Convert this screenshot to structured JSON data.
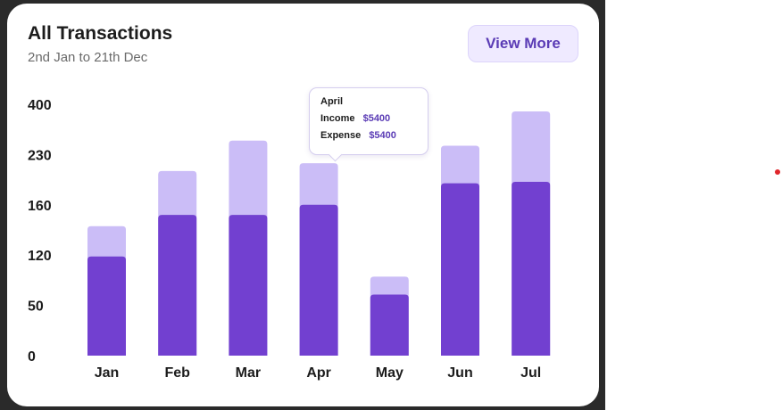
{
  "card": {
    "title": "All Transactions",
    "subtitle": "2nd Jan to 21th Dec",
    "view_more_label": "View More"
  },
  "colors": {
    "income": "#7240d0",
    "expense": "#cbbdf7",
    "accent": "#5a3bb5",
    "button_bg": "#efeaff"
  },
  "tooltip": {
    "month": "April",
    "income_label": "Income",
    "income_value": "$5400",
    "expense_label": "Expense",
    "expense_value": "$5400"
  },
  "chart_data": {
    "type": "bar",
    "stacked": true,
    "categories": [
      "Jan",
      "Feb",
      "Mar",
      "Apr",
      "May",
      "Jun",
      "Jul"
    ],
    "y_ticks": [
      "0",
      "50",
      "120",
      "160",
      "230",
      "400"
    ],
    "tick_values": [
      0,
      50,
      120,
      160,
      230,
      400
    ],
    "series": [
      {
        "values": [
          118,
          152,
          152,
          160,
          65,
          190,
          192
        ]
      },
      {
        "values": [
          143,
          207,
          277,
          218,
          90,
          260,
          376
        ]
      }
    ],
    "grid": false,
    "legend": "none"
  }
}
